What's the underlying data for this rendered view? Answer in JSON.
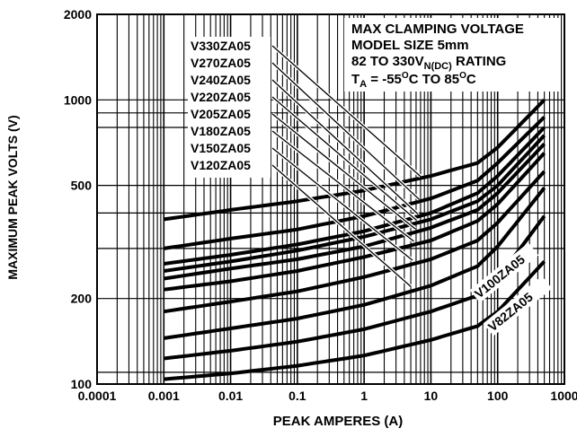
{
  "chart_data": {
    "type": "line",
    "title_lines": [
      "MAX CLAMPING VOLTAGE",
      "MODEL SIZE 5mm",
      "82 TO 330V",
      "T"
    ],
    "title_sub": {
      "rating_sub": "N(DC)",
      "rating_tail": " RATING",
      "ta_sub": "A",
      "ta_mid": " = -55",
      "deg": "O",
      "ta_c1": "C TO 85",
      "ta_c2": "C"
    },
    "xlabel": "PEAK AMPERES (A)",
    "ylabel": "MAXIMUM PEAK VOLTS (V)",
    "x_scale": "log",
    "y_scale": "log",
    "xlim": [
      0.0001,
      1000
    ],
    "ylim": [
      100,
      2000
    ],
    "x_ticks": [
      "0.0001",
      "0.001",
      "0.01",
      "0.1",
      "1",
      "10",
      "100",
      "1000"
    ],
    "y_ticks": [
      "100",
      "200",
      "500",
      "1000",
      "2000"
    ],
    "y_tick_values": [
      100,
      200,
      500,
      1000,
      2000
    ],
    "extra_y_grid": [
      110,
      300,
      400,
      800,
      900
    ],
    "grid": true,
    "series": [
      {
        "name": "V330ZA05",
        "x": [
          0.001,
          0.01,
          0.1,
          1,
          10,
          50,
          100,
          500
        ],
        "y": [
          380,
          410,
          440,
          480,
          540,
          600,
          680,
          1000
        ]
      },
      {
        "name": "V270ZA05",
        "x": [
          0.001,
          0.01,
          0.1,
          1,
          10,
          50,
          100,
          500
        ],
        "y": [
          300,
          325,
          350,
          390,
          450,
          520,
          600,
          870
        ]
      },
      {
        "name": "V240ZA05",
        "x": [
          0.001,
          0.01,
          0.1,
          1,
          10,
          50,
          100,
          500
        ],
        "y": [
          265,
          285,
          310,
          345,
          400,
          470,
          540,
          800
        ]
      },
      {
        "name": "V220ZA05",
        "x": [
          0.001,
          0.01,
          0.1,
          1,
          10,
          50,
          100,
          500
        ],
        "y": [
          250,
          270,
          295,
          330,
          380,
          440,
          500,
          750
        ]
      },
      {
        "name": "V205ZA05",
        "x": [
          0.001,
          0.01,
          0.1,
          1,
          10,
          50,
          100,
          500
        ],
        "y": [
          235,
          255,
          275,
          305,
          355,
          410,
          470,
          700
        ]
      },
      {
        "name": "V180ZA05",
        "x": [
          0.001,
          0.01,
          0.1,
          1,
          10,
          50,
          100,
          500
        ],
        "y": [
          215,
          230,
          250,
          280,
          320,
          375,
          430,
          650
        ]
      },
      {
        "name": "V150ZA05",
        "x": [
          0.001,
          0.01,
          0.1,
          1,
          10,
          50,
          100,
          500
        ],
        "y": [
          180,
          195,
          212,
          238,
          275,
          320,
          370,
          560
        ]
      },
      {
        "name": "V120ZA05",
        "x": [
          0.001,
          0.01,
          0.1,
          1,
          10,
          50,
          100,
          500
        ],
        "y": [
          145,
          157,
          170,
          190,
          222,
          260,
          305,
          490
        ]
      },
      {
        "name": "V100ZA05",
        "x": [
          0.001,
          0.01,
          0.1,
          1,
          10,
          50,
          100,
          500
        ],
        "y": [
          123,
          131,
          141,
          156,
          180,
          205,
          235,
          390
        ]
      },
      {
        "name": "V82ZA05",
        "x": [
          0.001,
          0.01,
          0.1,
          1,
          10,
          50,
          100,
          500
        ],
        "y": [
          104,
          109,
          116,
          126,
          143,
          160,
          180,
          270
        ]
      }
    ],
    "label_box_series": [
      "V330ZA05",
      "V270ZA05",
      "V240ZA05",
      "V220ZA05",
      "V205ZA05",
      "V180ZA05",
      "V150ZA05",
      "V120ZA05"
    ],
    "rotated_label_series": [
      "V100ZA05",
      "V82ZA05"
    ],
    "colors": {
      "line": "#000000",
      "grid": "#000000",
      "background": "#ffffff"
    }
  }
}
